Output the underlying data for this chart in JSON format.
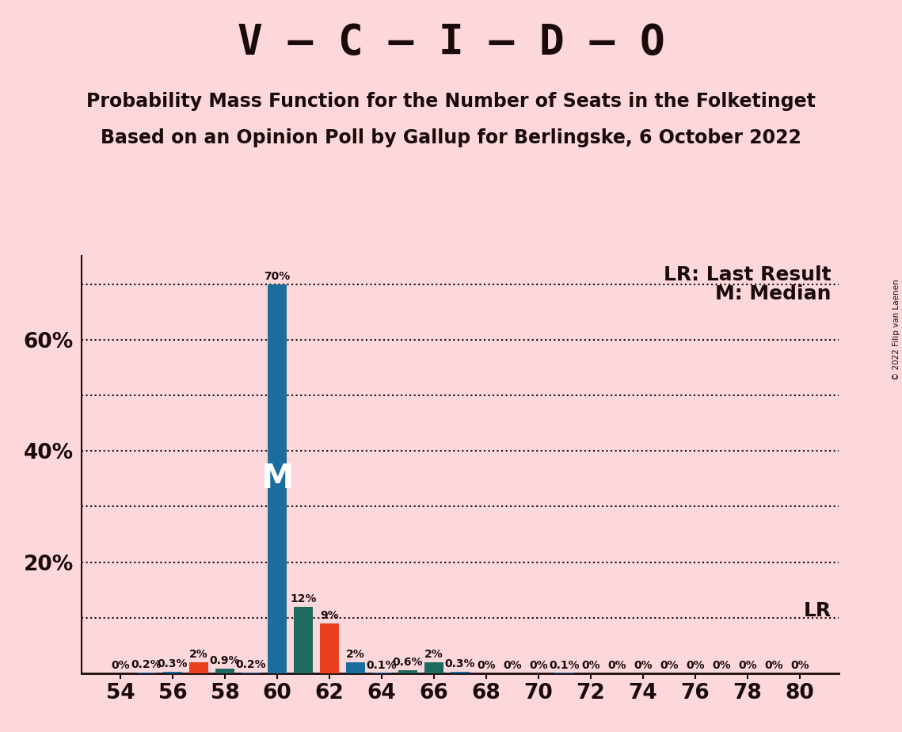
{
  "title": "V – C – I – D – O",
  "subtitle1": "Probability Mass Function for the Number of Seats in the Folketinget",
  "subtitle2": "Based on an Opinion Poll by Gallup for Berlingske, 6 October 2022",
  "copyright": "© 2022 Filip van Laenen",
  "background_color": "#fcd8dc",
  "bar_color_blue": "#1a6e9e",
  "bar_color_orange": "#e8401c",
  "bar_color_teal": "#1d6b5e",
  "seats": [
    54,
    55,
    56,
    57,
    58,
    59,
    60,
    61,
    62,
    63,
    64,
    65,
    66,
    67,
    68,
    69,
    70,
    71,
    72,
    73,
    74,
    75,
    76,
    77,
    78,
    79,
    80
  ],
  "values": [
    0.0,
    0.2,
    0.3,
    2.0,
    0.9,
    0.2,
    70.0,
    12.0,
    9.0,
    2.0,
    0.1,
    0.6,
    2.0,
    0.3,
    0.0,
    0.0,
    0.0,
    0.1,
    0.0,
    0.0,
    0.0,
    0.0,
    0.0,
    0.0,
    0.0,
    0.0,
    0.0
  ],
  "bar_colors": [
    "#1a6e9e",
    "#1a6e9e",
    "#1a6e9e",
    "#e8401c",
    "#1d6b5e",
    "#1a6e9e",
    "#1a6e9e",
    "#1d6b5e",
    "#e8401c",
    "#1a6e9e",
    "#1a6e9e",
    "#1d6b5e",
    "#1d6b5e",
    "#1a6e9e",
    "#1a6e9e",
    "#1a6e9e",
    "#1a6e9e",
    "#1a6e9e",
    "#1a6e9e",
    "#1a6e9e",
    "#1a6e9e",
    "#1a6e9e",
    "#1a6e9e",
    "#1a6e9e",
    "#1a6e9e",
    "#1a6e9e",
    "#1a6e9e"
  ],
  "labels": [
    "0%",
    "0.2%",
    "0.3%",
    "2%",
    "0.9%",
    "0.2%",
    "70%",
    "12%",
    "9%",
    "2%",
    "0.1%",
    "0.6%",
    "2%",
    "0.3%",
    "0%",
    "0%",
    "0%",
    "0.1%",
    "0%",
    "0%",
    "0%",
    "0%",
    "0%",
    "0%",
    "0%",
    "0%",
    "0%"
  ],
  "xlim": [
    52.5,
    81.5
  ],
  "ylim": [
    0,
    75
  ],
  "yticks": [
    20,
    40,
    60
  ],
  "ytick_labels": [
    "20%",
    "40%",
    "60%"
  ],
  "grid_lines": [
    10,
    20,
    30,
    40,
    50,
    60,
    70
  ],
  "lr_line_y": 9.5,
  "lr_top_line_y": 70.0,
  "median_seat": 60,
  "annotation_lr_top": "LR: Last Result",
  "annotation_m": "M: Median",
  "annotation_lr_short": "LR",
  "title_fontsize": 38,
  "subtitle_fontsize": 17,
  "label_fontsize": 10,
  "axis_fontsize": 19,
  "annotation_fontsize": 18,
  "m_label_fontsize": 30,
  "text_color": "#1a0a0a"
}
